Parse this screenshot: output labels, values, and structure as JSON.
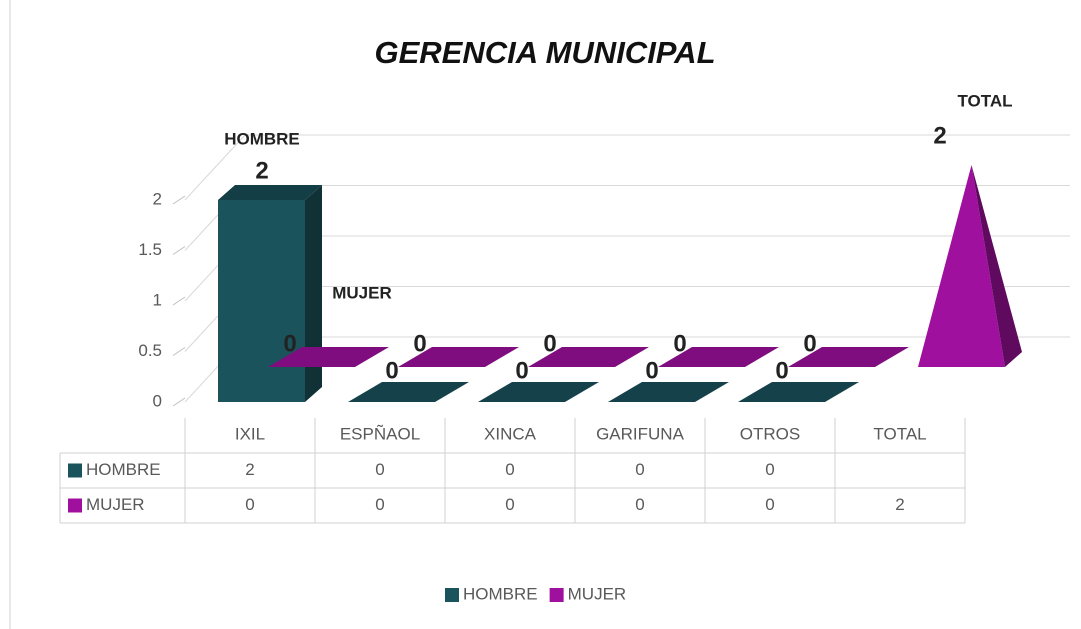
{
  "chart_data": {
    "type": "bar3d",
    "title": "GERENCIA MUNICIPAL",
    "categories": [
      "IXIL",
      "ESPÑAOL",
      "XINCA",
      "GARIFUNA",
      "OTROS",
      "TOTAL"
    ],
    "series": [
      {
        "name": "HOMBRE",
        "color": "#1a535c",
        "values": [
          2,
          0,
          0,
          0,
          0,
          null
        ]
      },
      {
        "name": "MUJER",
        "color": "#a0109f",
        "values": [
          0,
          0,
          0,
          0,
          0,
          2
        ]
      }
    ],
    "ylim": [
      0,
      2
    ],
    "yticks": [
      0,
      {
        "value": 0.5,
        "label": "0.5"
      },
      1,
      {
        "value": 1.5,
        "label": "1.5"
      },
      2
    ],
    "grid": true,
    "legend": "bottom",
    "data_table": true
  }
}
